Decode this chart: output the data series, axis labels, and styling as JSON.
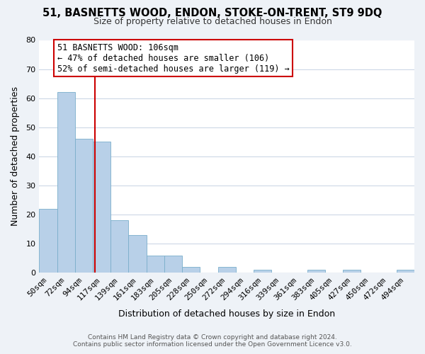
{
  "title": "51, BASNETTS WOOD, ENDON, STOKE-ON-TRENT, ST9 9DQ",
  "subtitle": "Size of property relative to detached houses in Endon",
  "xlabel": "Distribution of detached houses by size in Endon",
  "ylabel": "Number of detached properties",
  "bin_labels": [
    "50sqm",
    "72sqm",
    "94sqm",
    "117sqm",
    "139sqm",
    "161sqm",
    "183sqm",
    "205sqm",
    "228sqm",
    "250sqm",
    "272sqm",
    "294sqm",
    "316sqm",
    "339sqm",
    "361sqm",
    "383sqm",
    "405sqm",
    "427sqm",
    "450sqm",
    "472sqm",
    "494sqm"
  ],
  "bar_heights": [
    22,
    62,
    46,
    45,
    18,
    13,
    6,
    6,
    2,
    0,
    2,
    0,
    1,
    0,
    0,
    1,
    0,
    1,
    0,
    0,
    1
  ],
  "bar_color": "#b8d0e8",
  "bar_edge_color": "#7aaecb",
  "vline_x_index": 2.62,
  "vline_color": "#cc0000",
  "annotation_text_line1": "51 BASNETTS WOOD: 106sqm",
  "annotation_text_line2": "← 47% of detached houses are smaller (106)",
  "annotation_text_line3": "52% of semi-detached houses are larger (119) →",
  "annotation_box_edge": "#cc0000",
  "ylim": [
    0,
    80
  ],
  "yticks": [
    0,
    10,
    20,
    30,
    40,
    50,
    60,
    70,
    80
  ],
  "footer_line1": "Contains HM Land Registry data © Crown copyright and database right 2024.",
  "footer_line2": "Contains public sector information licensed under the Open Government Licence v3.0.",
  "bg_color": "#eef2f7",
  "plot_bg_color": "#ffffff",
  "grid_color": "#cdd8e6",
  "title_fontsize": 10.5,
  "subtitle_fontsize": 9,
  "axis_label_fontsize": 9,
  "tick_fontsize": 8,
  "annotation_fontsize": 8.5,
  "footer_fontsize": 6.5
}
